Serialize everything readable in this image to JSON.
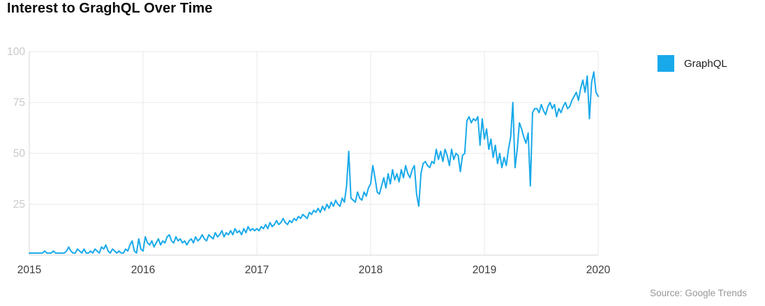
{
  "header": {
    "title": "Interest to GraghQL Over Time"
  },
  "legend": {
    "label": "GraphQL",
    "swatch_color": "#18a9ea"
  },
  "footer": {
    "source": "Source: Google Trends"
  },
  "chart_data": {
    "type": "line",
    "title": "Interest to GraghQL Over Time",
    "xlabel": "",
    "ylabel": "",
    "ylim": [
      0,
      100
    ],
    "grid": true,
    "legend_position": "right",
    "x_tick_labels": [
      "2015",
      "2016",
      "2017",
      "2018",
      "2019",
      "2020"
    ],
    "y_tick_labels": [
      25,
      50,
      75,
      100
    ],
    "axis_color": "#d6d6d6",
    "gridline_color": "#e8e8e8",
    "x_tick_color": "#3c3c3c",
    "y_tick_color": "#c9c9c9",
    "series": [
      {
        "name": "GraphQL",
        "color": "#18a9ea",
        "cadence": "weekly",
        "x_start": "2015",
        "x_end": "2020",
        "values": [
          1,
          1,
          1,
          1,
          1,
          1,
          1,
          2,
          1,
          1,
          1,
          2,
          1,
          1,
          1,
          1,
          1,
          2,
          4,
          2,
          1,
          1,
          3,
          2,
          1,
          3,
          1,
          1,
          2,
          1,
          3,
          2,
          1,
          4,
          3,
          5,
          2,
          1,
          3,
          2,
          1,
          2,
          1,
          1,
          3,
          2,
          5,
          7,
          2,
          1,
          8,
          3,
          2,
          9,
          6,
          5,
          7,
          4,
          6,
          8,
          5,
          7,
          6,
          9,
          10,
          7,
          6,
          9,
          7,
          8,
          6,
          7,
          5,
          7,
          8,
          6,
          9,
          7,
          8,
          10,
          8,
          7,
          10,
          9,
          8,
          11,
          9,
          10,
          12,
          9,
          11,
          10,
          12,
          10,
          13,
          11,
          12,
          10,
          13,
          11,
          14,
          12,
          13,
          12,
          13,
          12,
          14,
          13,
          15,
          13,
          16,
          14,
          15,
          17,
          15,
          16,
          18,
          16,
          15,
          17,
          16,
          18,
          17,
          19,
          18,
          20,
          19,
          18,
          21,
          20,
          22,
          21,
          23,
          21,
          24,
          22,
          25,
          23,
          26,
          24,
          27,
          25,
          24,
          28,
          26,
          34,
          51,
          28,
          27,
          26,
          31,
          28,
          27,
          31,
          29,
          33,
          35,
          44,
          38,
          31,
          30,
          34,
          38,
          33,
          40,
          35,
          42,
          37,
          40,
          36,
          42,
          38,
          44,
          40,
          38,
          42,
          44,
          30,
          24,
          40,
          45,
          46,
          44,
          43,
          46,
          45,
          52,
          47,
          51,
          46,
          52,
          49,
          44,
          52,
          47,
          50,
          49,
          41,
          49,
          50,
          66,
          68,
          65,
          67,
          66,
          68,
          54,
          67,
          57,
          62,
          52,
          57,
          48,
          54,
          45,
          50,
          43,
          48,
          44,
          52,
          58,
          75,
          43,
          52,
          65,
          62,
          58,
          55,
          60,
          34,
          70,
          72,
          72,
          70,
          74,
          71,
          69,
          73,
          75,
          72,
          74,
          68,
          72,
          70,
          73,
          75,
          72,
          73,
          76,
          78,
          80,
          76,
          82,
          86,
          80,
          88,
          67,
          85,
          90,
          80,
          78
        ]
      }
    ]
  }
}
